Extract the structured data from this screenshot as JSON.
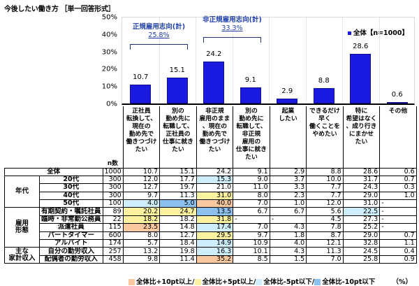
{
  "title": "今後したい働き方 ［単一回答形式］",
  "legend": "全体【n=1000】",
  "groups": [
    {
      "label": "正規雇用志向(計)",
      "value": "25.8%"
    },
    {
      "label": "非正規雇用志向(計)",
      "value": "33.3%"
    }
  ],
  "yticks": [
    "50%",
    "40%",
    "30%",
    "20%",
    "10%",
    "0%"
  ],
  "columns": [
    "正社員\n転換して、\n現在の\n勤め先で\n働きつづけ\nたい",
    "別の\n勤め先に\n転職して、\n正社員の\n仕事に就き\nたい",
    "非正規\n雇用のまま\n、現在の\n勤め先で\n働きつづけ\nたい",
    "別の\n勤め先に\n転職して、\n非正規\n雇用の\n仕事に就き\nたい",
    "起業\nしたい",
    "できるだけ\n早く\n働くことを\nやめたい",
    "特に\n希望はなく\n、成り行き\nにまかせ\nたい",
    "その他"
  ],
  "n_header": "n数",
  "chart_data": {
    "type": "bar",
    "title": "今後したい働き方 ［単一回答形式］",
    "categories": [
      "正社員転換して、現在の勤め先で働きつづけたい",
      "別の勤め先に転職して、正社員の仕事に就きたい",
      "非正規雇用のまま、現在の勤め先で働きつづけたい",
      "別の勤め先に転職して、非正規雇用の仕事に就きたい",
      "起業したい",
      "できるだけ早く働くことをやめたい",
      "特に希望はなく、成り行きにまかせたい",
      "その他"
    ],
    "series": [
      {
        "name": "全体【n=1000】",
        "values": [
          10.7,
          15.1,
          24.2,
          9.1,
          2.9,
          8.8,
          28.6,
          0.6
        ]
      }
    ],
    "ylim": [
      0,
      50
    ],
    "ylabel": "%",
    "yticks": [
      "0%",
      "10%",
      "20%",
      "30%",
      "40%",
      "50%"
    ],
    "annotations": [
      "正規雇用志向(計) 25.8%",
      "非正規雇用志向(計) 33.3%"
    ],
    "grid": true,
    "legend_position": "top-right"
  },
  "table": {
    "rows": [
      {
        "group": "",
        "label": "全体",
        "n": "1000",
        "values": [
          "10.7",
          "15.1",
          "24.2",
          "9.1",
          "2.9",
          "8.8",
          "28.6",
          "0.6"
        ],
        "colors": [
          "",
          "",
          "",
          "",
          "",
          "",
          "",
          ""
        ]
      },
      {
        "group": "年代",
        "label": "20代",
        "n": "300",
        "values": [
          "12.0",
          "17.7",
          "15.3",
          "9.0",
          "3.7",
          "10.0",
          "31.7",
          "0.7"
        ],
        "colors": [
          "",
          "",
          "dn5",
          "",
          "",
          "",
          "",
          ""
        ]
      },
      {
        "group": "年代",
        "label": "30代",
        "n": "300",
        "values": [
          "12.7",
          "19.7",
          "21.0",
          "11.0",
          "3.3",
          "7.7",
          "24.3",
          "0.3"
        ],
        "colors": [
          "",
          "",
          "",
          "",
          "",
          "",
          "",
          ""
        ]
      },
      {
        "group": "年代",
        "label": "40代",
        "n": "300",
        "values": [
          "9.7",
          "11.3",
          "31.0",
          "8.0",
          "2.3",
          "7.7",
          "29.0",
          "1.0"
        ],
        "colors": [
          "",
          "",
          "up5",
          "",
          "",
          "",
          "",
          ""
        ]
      },
      {
        "group": "年代",
        "label": "50代",
        "n": "100",
        "values": [
          "4.0",
          "5.0",
          "40.0",
          "7.0",
          "1.0",
          "12.0",
          "31.0",
          "-"
        ],
        "colors": [
          "dn5",
          "dn10",
          "up10",
          "",
          "",
          "",
          "",
          ""
        ]
      },
      {
        "group": "雇用形態",
        "label": "有期契約・嘱託社員",
        "n": "89",
        "values": [
          "20.2",
          "24.7",
          "13.5",
          "6.7",
          "6.7",
          "5.6",
          "22.5",
          "-"
        ],
        "colors": [
          "up5",
          "up5",
          "dn10",
          "",
          "",
          "",
          "dn5",
          ""
        ]
      },
      {
        "group": "雇用形態",
        "label": "臨時・非常勤公務員",
        "n": "22",
        "values": [
          "18.2",
          "18.2",
          "31.8",
          "-",
          "-",
          "4.5",
          "27.3",
          "-"
        ],
        "colors": [
          "up5",
          "",
          "up5",
          "",
          "",
          "",
          "",
          ""
        ]
      },
      {
        "group": "雇用形態",
        "label": "派遣社員",
        "n": "115",
        "values": [
          "23.5",
          "14.8",
          "17.4",
          "7.0",
          "4.3",
          "7.8",
          "25.2",
          "-"
        ],
        "colors": [
          "up10",
          "",
          "dn5",
          "",
          "",
          "",
          "",
          ""
        ]
      },
      {
        "group": "雇用形態",
        "label": "パートタイマー",
        "n": "600",
        "values": [
          "8.0",
          "12.7",
          "29.5",
          "9.7",
          "1.8",
          "8.7",
          "29.0",
          "0.7"
        ],
        "colors": [
          "",
          "",
          "up5",
          "",
          "",
          "",
          "",
          ""
        ]
      },
      {
        "group": "雇用形態",
        "label": "アルバイト",
        "n": "174",
        "values": [
          "5.7",
          "18.4",
          "14.9",
          "10.9",
          "4.0",
          "12.1",
          "32.8",
          "1.1"
        ],
        "colors": [
          "",
          "",
          "dn5",
          "",
          "",
          "",
          "",
          ""
        ]
      },
      {
        "group": "主な家計収入",
        "label": "自分の勤労収入",
        "n": "257",
        "values": [
          "13.2",
          "19.8",
          "16.3",
          "10.1",
          "4.3",
          "11.3",
          "24.5",
          "0.4"
        ],
        "colors": [
          "",
          "",
          "dn5",
          "",
          "",
          "",
          "",
          ""
        ]
      },
      {
        "group": "主な家計収入",
        "label": "配偶者の勤労収入",
        "n": "458",
        "values": [
          "9.8",
          "11.4",
          "35.2",
          "8.5",
          "1.5",
          "7.0",
          "25.8",
          "0.9"
        ],
        "colors": [
          "",
          "",
          "up10",
          "",
          "",
          "",
          "",
          ""
        ]
      }
    ],
    "group_labels": {
      "age": "年代",
      "employment": "雇用\n形態",
      "income": "主な\n家計収入"
    }
  },
  "color_legend": [
    {
      "label": "全体比+10pt以上/",
      "color": "#f8c8a0"
    },
    {
      "label": "全体比+5pt以上/",
      "color": "#fcf3a0"
    },
    {
      "label": "全体比-5pt以下/",
      "color": "#cdeefa"
    },
    {
      "label": "全体比-10pt以下",
      "color": "#8cc0ef"
    }
  ],
  "unit": "（%）",
  "colors": {
    "bar": "#1a1ae0",
    "group_label": "#1f3fa8"
  }
}
